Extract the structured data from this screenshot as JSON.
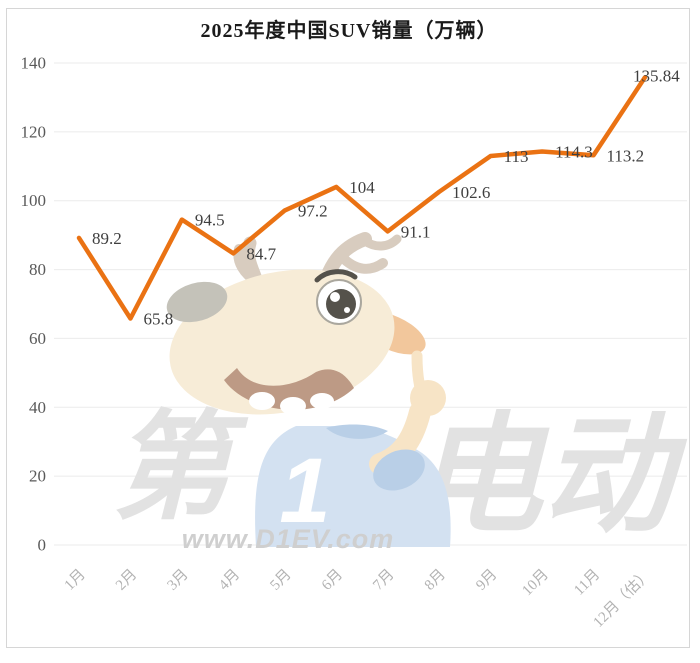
{
  "chart_data": {
    "type": "line",
    "title": "2025年度中国SUV销量（万辆）",
    "categories": [
      "1月",
      "2月",
      "3月",
      "4月",
      "5月",
      "6月",
      "7月",
      "8月",
      "9月",
      "10月",
      "11月",
      "12月（估）"
    ],
    "series": [
      {
        "values": [
          89.2,
          65.8,
          94.5,
          84.7,
          97.2,
          104,
          91.1,
          102.6,
          113,
          114.3,
          113.2,
          135.84
        ]
      }
    ],
    "data_labels": [
      "89.2",
      "65.8",
      "94.5",
      "84.7",
      "97.2",
      "104",
      "91.1",
      "102.6",
      "113",
      "114.3",
      "113.2",
      "135.84"
    ],
    "xlabel": "",
    "ylabel": "",
    "ylim": [
      0,
      140
    ],
    "yticks": [
      0,
      20,
      40,
      60,
      80,
      100,
      120,
      140
    ],
    "grid": true,
    "legend_position": "none"
  },
  "watermark": {
    "left_char": "第",
    "shirt_number": "1",
    "right_chars": "电动",
    "site_url": "www.D1EV.com"
  },
  "colors": {
    "line": "#ea7213",
    "grid": "#ebebeb",
    "y_tick_label": "#595959",
    "x_tick_label": "#b3b3b3",
    "data_label": "#3f3f3f",
    "title": "#1a1a1a",
    "frame_border": "#d6d6d6",
    "background": "#ffffff"
  }
}
